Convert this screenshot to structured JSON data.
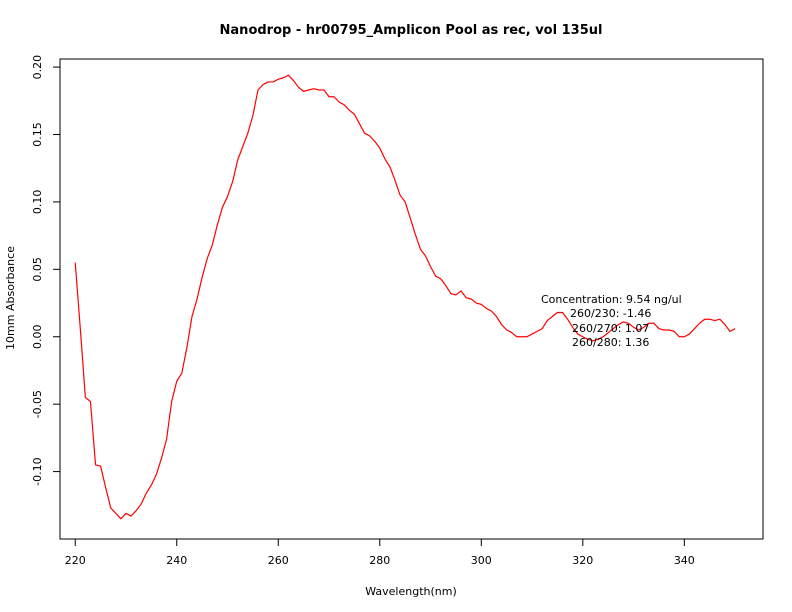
{
  "chart_data": {
    "type": "line",
    "title": "Nanodrop - hr00795_Amplicon Pool as rec, vol 135ul",
    "xlabel": "Wavelength(nm)",
    "ylabel": "10mm Absorbance",
    "xlim": [
      217,
      355.5
    ],
    "ylim": [
      -0.15,
      0.206
    ],
    "x_ticks": [
      220,
      240,
      260,
      280,
      300,
      320,
      340
    ],
    "x_tick_labels": [
      "220",
      "240",
      "260",
      "280",
      "300",
      "320",
      "340"
    ],
    "y_ticks": [
      -0.1,
      -0.05,
      0.0,
      0.05,
      0.1,
      0.15,
      0.2
    ],
    "y_tick_labels": [
      "-0.10",
      "-0.05",
      "0.00",
      "0.05",
      "0.10",
      "0.15",
      "0.20"
    ],
    "grid": false,
    "series": [
      {
        "color": "#ff0000",
        "x": [
          220,
          221,
          222,
          223,
          224,
          225,
          226,
          227,
          228,
          229,
          230,
          231,
          232,
          233,
          234,
          235,
          236,
          237,
          238,
          239,
          240,
          241,
          242,
          243,
          244,
          245,
          246,
          247,
          248,
          249,
          250,
          251,
          252,
          253,
          254,
          255,
          256,
          257,
          258,
          259,
          260,
          261,
          262,
          263,
          264,
          265,
          266,
          267,
          268,
          269,
          270,
          271,
          272,
          273,
          274,
          275,
          276,
          277,
          278,
          279,
          280,
          281,
          282,
          283,
          284,
          285,
          286,
          287,
          288,
          289,
          290,
          291,
          292,
          293,
          294,
          295,
          296,
          297,
          298,
          299,
          300,
          301,
          302,
          303,
          304,
          305,
          306,
          307,
          308,
          309,
          310,
          311,
          312,
          313,
          314,
          315,
          316,
          317,
          318,
          319,
          320,
          321,
          322,
          323,
          324,
          325,
          326,
          327,
          328,
          329,
          330,
          331,
          332,
          333,
          334,
          335,
          336,
          337,
          338,
          339,
          340,
          341,
          342,
          343,
          344,
          345,
          346,
          347,
          348,
          349,
          350
        ],
        "y": [
          0.055,
          0.006,
          -0.045,
          -0.048,
          -0.095,
          -0.096,
          -0.112,
          -0.127,
          -0.131,
          -0.135,
          -0.131,
          -0.133,
          -0.129,
          -0.124,
          -0.116,
          -0.11,
          -0.102,
          -0.09,
          -0.076,
          -0.048,
          -0.033,
          -0.027,
          -0.008,
          0.015,
          0.028,
          0.044,
          0.058,
          0.068,
          0.083,
          0.096,
          0.104,
          0.115,
          0.131,
          0.141,
          0.151,
          0.164,
          0.183,
          0.187,
          0.189,
          0.189,
          0.191,
          0.192,
          0.194,
          0.19,
          0.185,
          0.182,
          0.183,
          0.184,
          0.183,
          0.183,
          0.178,
          0.178,
          0.174,
          0.172,
          0.168,
          0.165,
          0.158,
          0.151,
          0.149,
          0.145,
          0.14,
          0.132,
          0.126,
          0.116,
          0.105,
          0.1,
          0.088,
          0.076,
          0.065,
          0.06,
          0.052,
          0.045,
          0.043,
          0.038,
          0.032,
          0.031,
          0.034,
          0.029,
          0.028,
          0.025,
          0.024,
          0.021,
          0.019,
          0.015,
          0.009,
          0.005,
          0.003,
          0.0,
          0.0,
          0.0,
          0.002,
          0.004,
          0.006,
          0.012,
          0.015,
          0.018,
          0.018,
          0.013,
          0.007,
          0.002,
          0.0,
          -0.002,
          -0.003,
          -0.002,
          0.0,
          0.003,
          0.006,
          0.009,
          0.011,
          0.01,
          0.007,
          0.005,
          0.007,
          0.01,
          0.01,
          0.006,
          0.005,
          0.005,
          0.004,
          0.0,
          0.0,
          0.002,
          0.006,
          0.01,
          0.013,
          0.013,
          0.012,
          0.013,
          0.009,
          0.004,
          0.006
        ]
      }
    ],
    "annotations": [
      "Concentration: 9.54 ng/ul",
      "260/230: -1.46",
      "260/270: 1.07",
      "260/280: 1.36"
    ]
  }
}
